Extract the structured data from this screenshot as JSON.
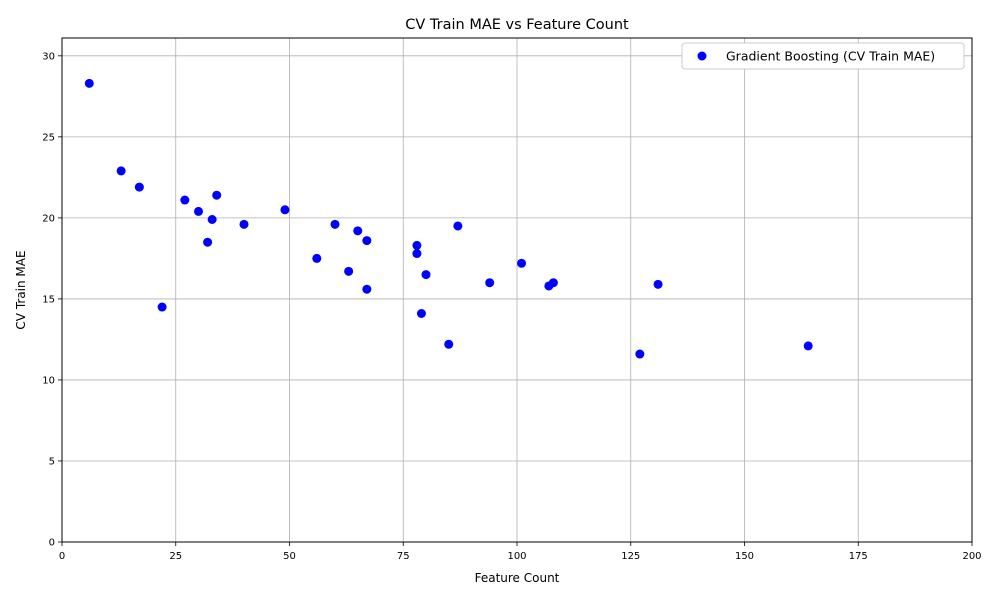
{
  "chart_data": {
    "type": "scatter",
    "title": "CV Train MAE vs Feature Count",
    "xlabel": "Feature Count",
    "ylabel": "CV Train MAE",
    "xlim": [
      0,
      200
    ],
    "ylim": [
      0,
      31.1
    ],
    "xticks": [
      0,
      25,
      50,
      75,
      100,
      125,
      150,
      175,
      200
    ],
    "yticks": [
      0,
      5,
      10,
      15,
      20,
      25,
      30
    ],
    "grid": true,
    "legend_position": "top-right",
    "series": [
      {
        "name": "Gradient Boosting (CV Train MAE)",
        "color": "#0000ff",
        "marker": "circle",
        "points": [
          {
            "x": 6,
            "y": 28.3
          },
          {
            "x": 13,
            "y": 22.9
          },
          {
            "x": 17,
            "y": 21.9
          },
          {
            "x": 22,
            "y": 14.5
          },
          {
            "x": 27,
            "y": 21.1
          },
          {
            "x": 30,
            "y": 20.4
          },
          {
            "x": 32,
            "y": 18.5
          },
          {
            "x": 33,
            "y": 19.9
          },
          {
            "x": 34,
            "y": 21.4
          },
          {
            "x": 40,
            "y": 19.6
          },
          {
            "x": 49,
            "y": 20.5
          },
          {
            "x": 56,
            "y": 17.5
          },
          {
            "x": 60,
            "y": 19.6
          },
          {
            "x": 63,
            "y": 16.7
          },
          {
            "x": 65,
            "y": 19.2
          },
          {
            "x": 67,
            "y": 18.6
          },
          {
            "x": 67,
            "y": 15.6
          },
          {
            "x": 78,
            "y": 18.3
          },
          {
            "x": 78,
            "y": 17.8
          },
          {
            "x": 79,
            "y": 14.1
          },
          {
            "x": 80,
            "y": 16.5
          },
          {
            "x": 85,
            "y": 12.2
          },
          {
            "x": 87,
            "y": 19.5
          },
          {
            "x": 94,
            "y": 16.0
          },
          {
            "x": 101,
            "y": 17.2
          },
          {
            "x": 107,
            "y": 15.8
          },
          {
            "x": 108,
            "y": 16.0
          },
          {
            "x": 127,
            "y": 11.6
          },
          {
            "x": 131,
            "y": 15.9
          },
          {
            "x": 164,
            "y": 12.1
          }
        ]
      }
    ]
  }
}
